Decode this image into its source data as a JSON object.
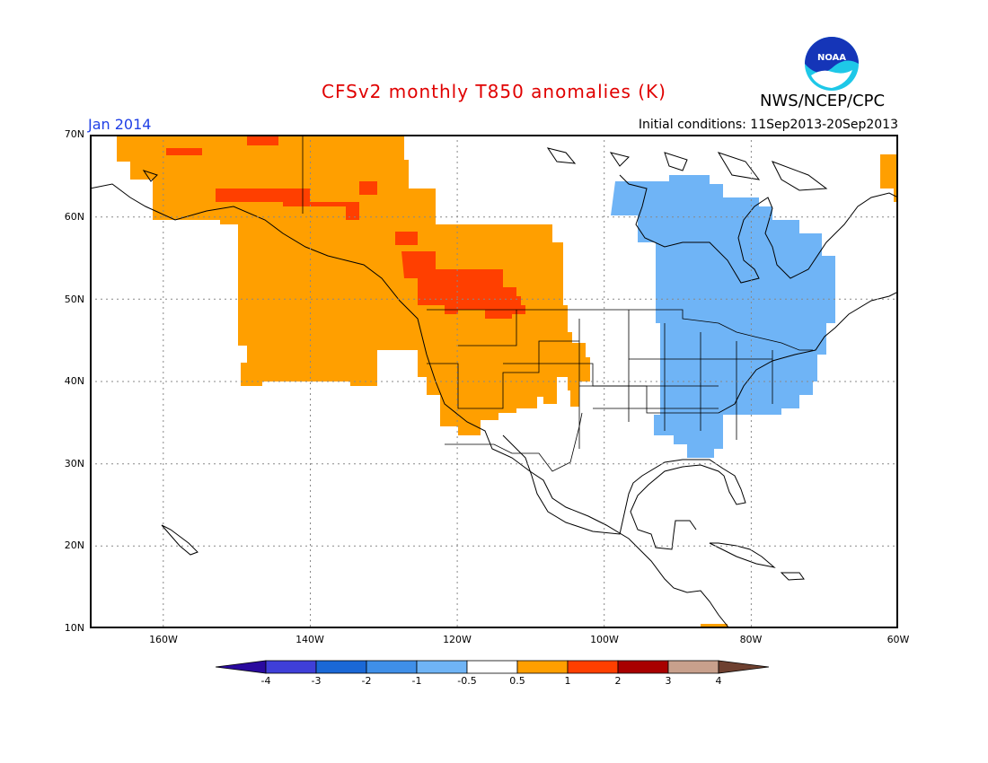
{
  "header": {
    "title": "CFSv2 monthly T850 anomalies (K)",
    "valid_month": "Jan 2014",
    "initial_conditions": "Initial conditions: 11Sep2013-20Sep2013",
    "agency": "NWS/NCEP/CPC",
    "logo_text": "NOAA"
  },
  "map": {
    "projection": "cylindrical",
    "lon_range": [
      -170,
      -60
    ],
    "lat_range": [
      10,
      70
    ],
    "lat_labels": [
      "70N",
      "60N",
      "50N",
      "40N",
      "30N",
      "20N",
      "10N"
    ],
    "lon_labels": [
      "160W",
      "140W",
      "120W",
      "100W",
      "80W",
      "60W"
    ],
    "anomaly_regions": [
      {
        "category": "0.5 to 1",
        "color": "#ff9f00",
        "area": "Alaska, western Canada and western United States"
      },
      {
        "category": "1 to 2",
        "color": "#ff3f00",
        "area": "Alberta / British Columbia and southern Alaska"
      },
      {
        "category": "-1 to -0.5",
        "color": "#6fb4f6",
        "area": "Hudson Bay, Ontario, Quebec, Great Lakes and eastern United States"
      }
    ]
  },
  "colorbar": {
    "labels": [
      "-4",
      "-3",
      "-2",
      "-1",
      "-0.5",
      "0.5",
      "1",
      "2",
      "3",
      "4"
    ],
    "colors": [
      "#2a0a9e",
      "#3f3fd8",
      "#1a68d6",
      "#3f8fe8",
      "#6fb4f6",
      "#ffffff",
      "#ff9f00",
      "#ff3f00",
      "#a80000",
      "#c8a08c",
      "#6e4030"
    ]
  }
}
